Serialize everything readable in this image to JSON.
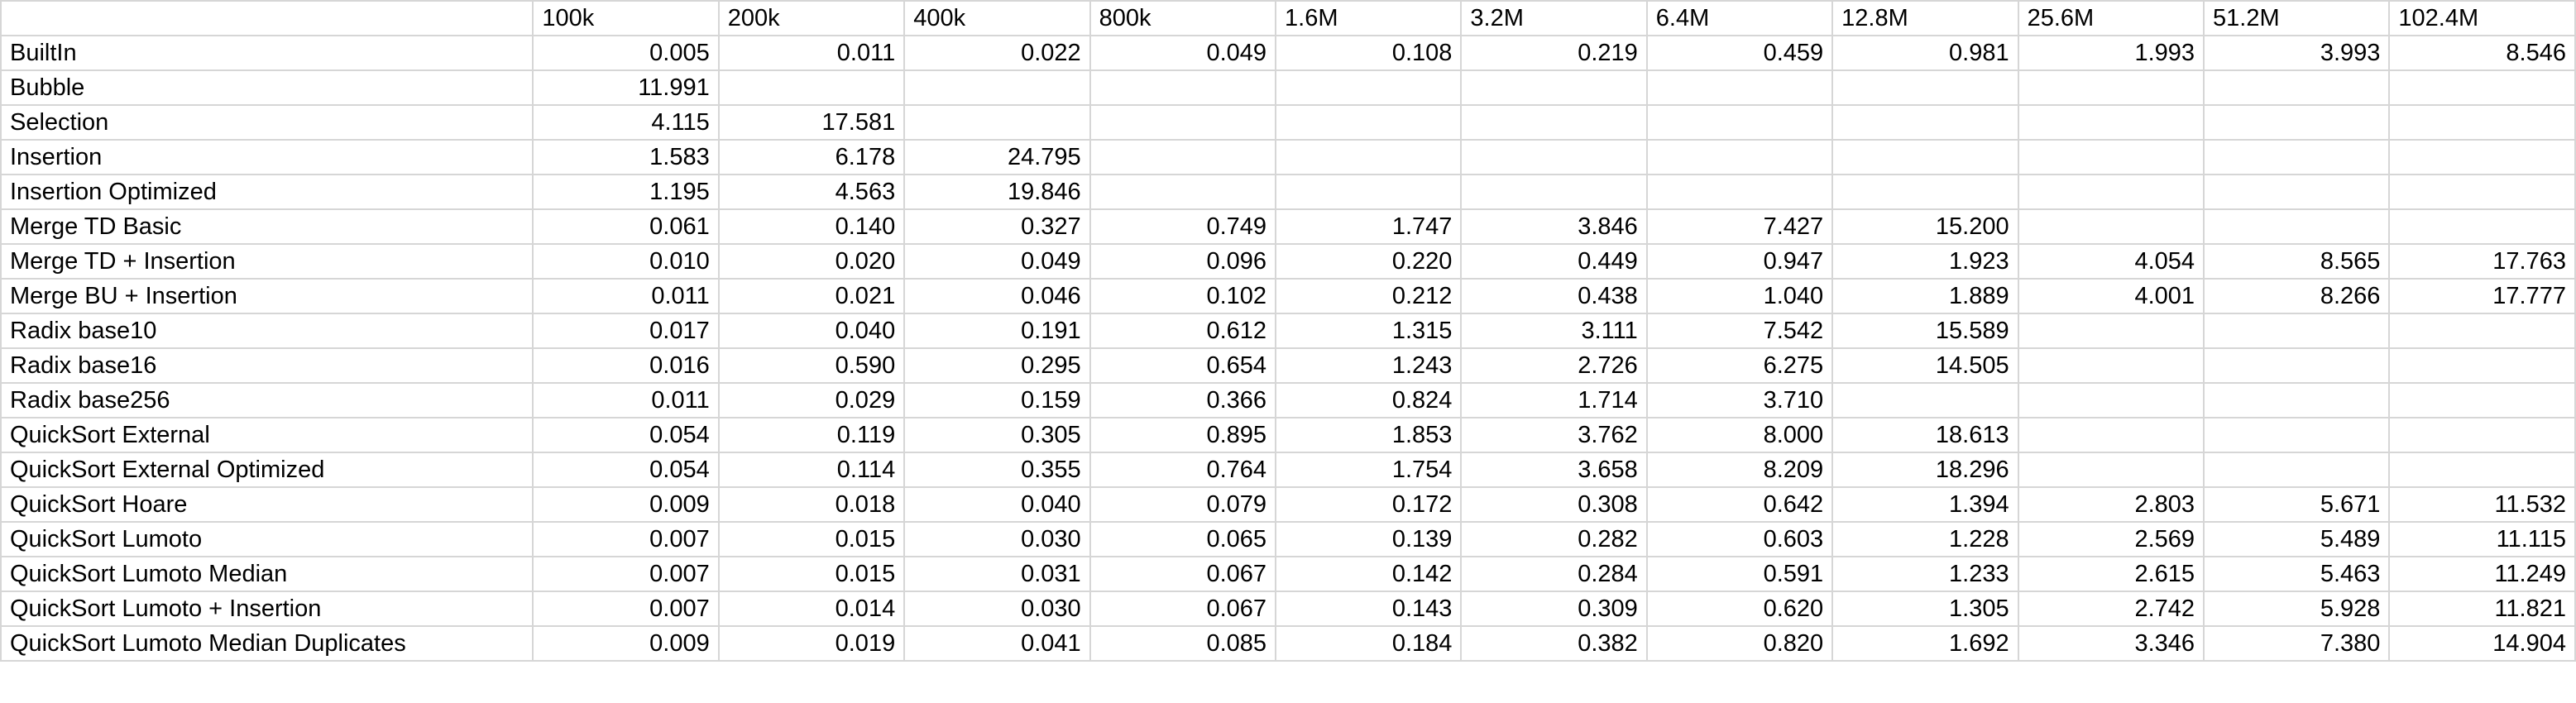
{
  "sheet": {
    "headers": [
      "",
      "100k",
      "200k",
      "400k",
      "800k",
      "1.6M",
      "3.2M",
      "6.4M",
      "12.8M",
      "25.6M",
      "51.2M",
      "102.4M"
    ],
    "rows": [
      {
        "name": "BuiltIn",
        "values": [
          "0.005",
          "0.011",
          "0.022",
          "0.049",
          "0.108",
          "0.219",
          "0.459",
          "0.981",
          "1.993",
          "3.993",
          "8.546"
        ]
      },
      {
        "name": "Bubble",
        "values": [
          "11.991",
          "",
          "",
          "",
          "",
          "",
          "",
          "",
          "",
          "",
          ""
        ]
      },
      {
        "name": "Selection",
        "values": [
          "4.115",
          "17.581",
          "",
          "",
          "",
          "",
          "",
          "",
          "",
          "",
          ""
        ]
      },
      {
        "name": "Insertion",
        "values": [
          "1.583",
          "6.178",
          "24.795",
          "",
          "",
          "",
          "",
          "",
          "",
          "",
          ""
        ]
      },
      {
        "name": "Insertion Optimized",
        "values": [
          "1.195",
          "4.563",
          "19.846",
          "",
          "",
          "",
          "",
          "",
          "",
          "",
          ""
        ]
      },
      {
        "name": "Merge TD Basic",
        "values": [
          "0.061",
          "0.140",
          "0.327",
          "0.749",
          "1.747",
          "3.846",
          "7.427",
          "15.200",
          "",
          "",
          ""
        ]
      },
      {
        "name": "Merge TD + Insertion",
        "values": [
          "0.010",
          "0.020",
          "0.049",
          "0.096",
          "0.220",
          "0.449",
          "0.947",
          "1.923",
          "4.054",
          "8.565",
          "17.763"
        ]
      },
      {
        "name": "Merge BU + Insertion",
        "values": [
          "0.011",
          "0.021",
          "0.046",
          "0.102",
          "0.212",
          "0.438",
          "1.040",
          "1.889",
          "4.001",
          "8.266",
          "17.777"
        ]
      },
      {
        "name": "Radix base10",
        "values": [
          "0.017",
          "0.040",
          "0.191",
          "0.612",
          "1.315",
          "3.111",
          "7.542",
          "15.589",
          "",
          "",
          ""
        ]
      },
      {
        "name": "Radix base16",
        "values": [
          "0.016",
          "0.590",
          "0.295",
          "0.654",
          "1.243",
          "2.726",
          "6.275",
          "14.505",
          "",
          "",
          ""
        ]
      },
      {
        "name": "Radix base256",
        "values": [
          "0.011",
          "0.029",
          "0.159",
          "0.366",
          "0.824",
          "1.714",
          "3.710",
          "",
          "",
          "",
          ""
        ]
      },
      {
        "name": "QuickSort External",
        "values": [
          "0.054",
          "0.119",
          "0.305",
          "0.895",
          "1.853",
          "3.762",
          "8.000",
          "18.613",
          "",
          "",
          ""
        ]
      },
      {
        "name": "QuickSort External Optimized",
        "values": [
          "0.054",
          "0.114",
          "0.355",
          "0.764",
          "1.754",
          "3.658",
          "8.209",
          "18.296",
          "",
          "",
          ""
        ]
      },
      {
        "name": "QuickSort Hoare",
        "values": [
          "0.009",
          "0.018",
          "0.040",
          "0.079",
          "0.172",
          "0.308",
          "0.642",
          "1.394",
          "2.803",
          "5.671",
          "11.532"
        ]
      },
      {
        "name": "QuickSort Lumoto",
        "values": [
          "0.007",
          "0.015",
          "0.030",
          "0.065",
          "0.139",
          "0.282",
          "0.603",
          "1.228",
          "2.569",
          "5.489",
          "11.115"
        ]
      },
      {
        "name": "QuickSort Lumoto Median",
        "values": [
          "0.007",
          "0.015",
          "0.031",
          "0.067",
          "0.142",
          "0.284",
          "0.591",
          "1.233",
          "2.615",
          "5.463",
          "11.249"
        ]
      },
      {
        "name": "QuickSort Lumoto + Insertion",
        "values": [
          "0.007",
          "0.014",
          "0.030",
          "0.067",
          "0.143",
          "0.309",
          "0.620",
          "1.305",
          "2.742",
          "5.928",
          "11.821"
        ]
      },
      {
        "name": "QuickSort Lumoto Median Duplicates",
        "values": [
          "0.009",
          "0.019",
          "0.041",
          "0.085",
          "0.184",
          "0.382",
          "0.820",
          "1.692",
          "3.346",
          "7.380",
          "14.904"
        ]
      }
    ]
  }
}
